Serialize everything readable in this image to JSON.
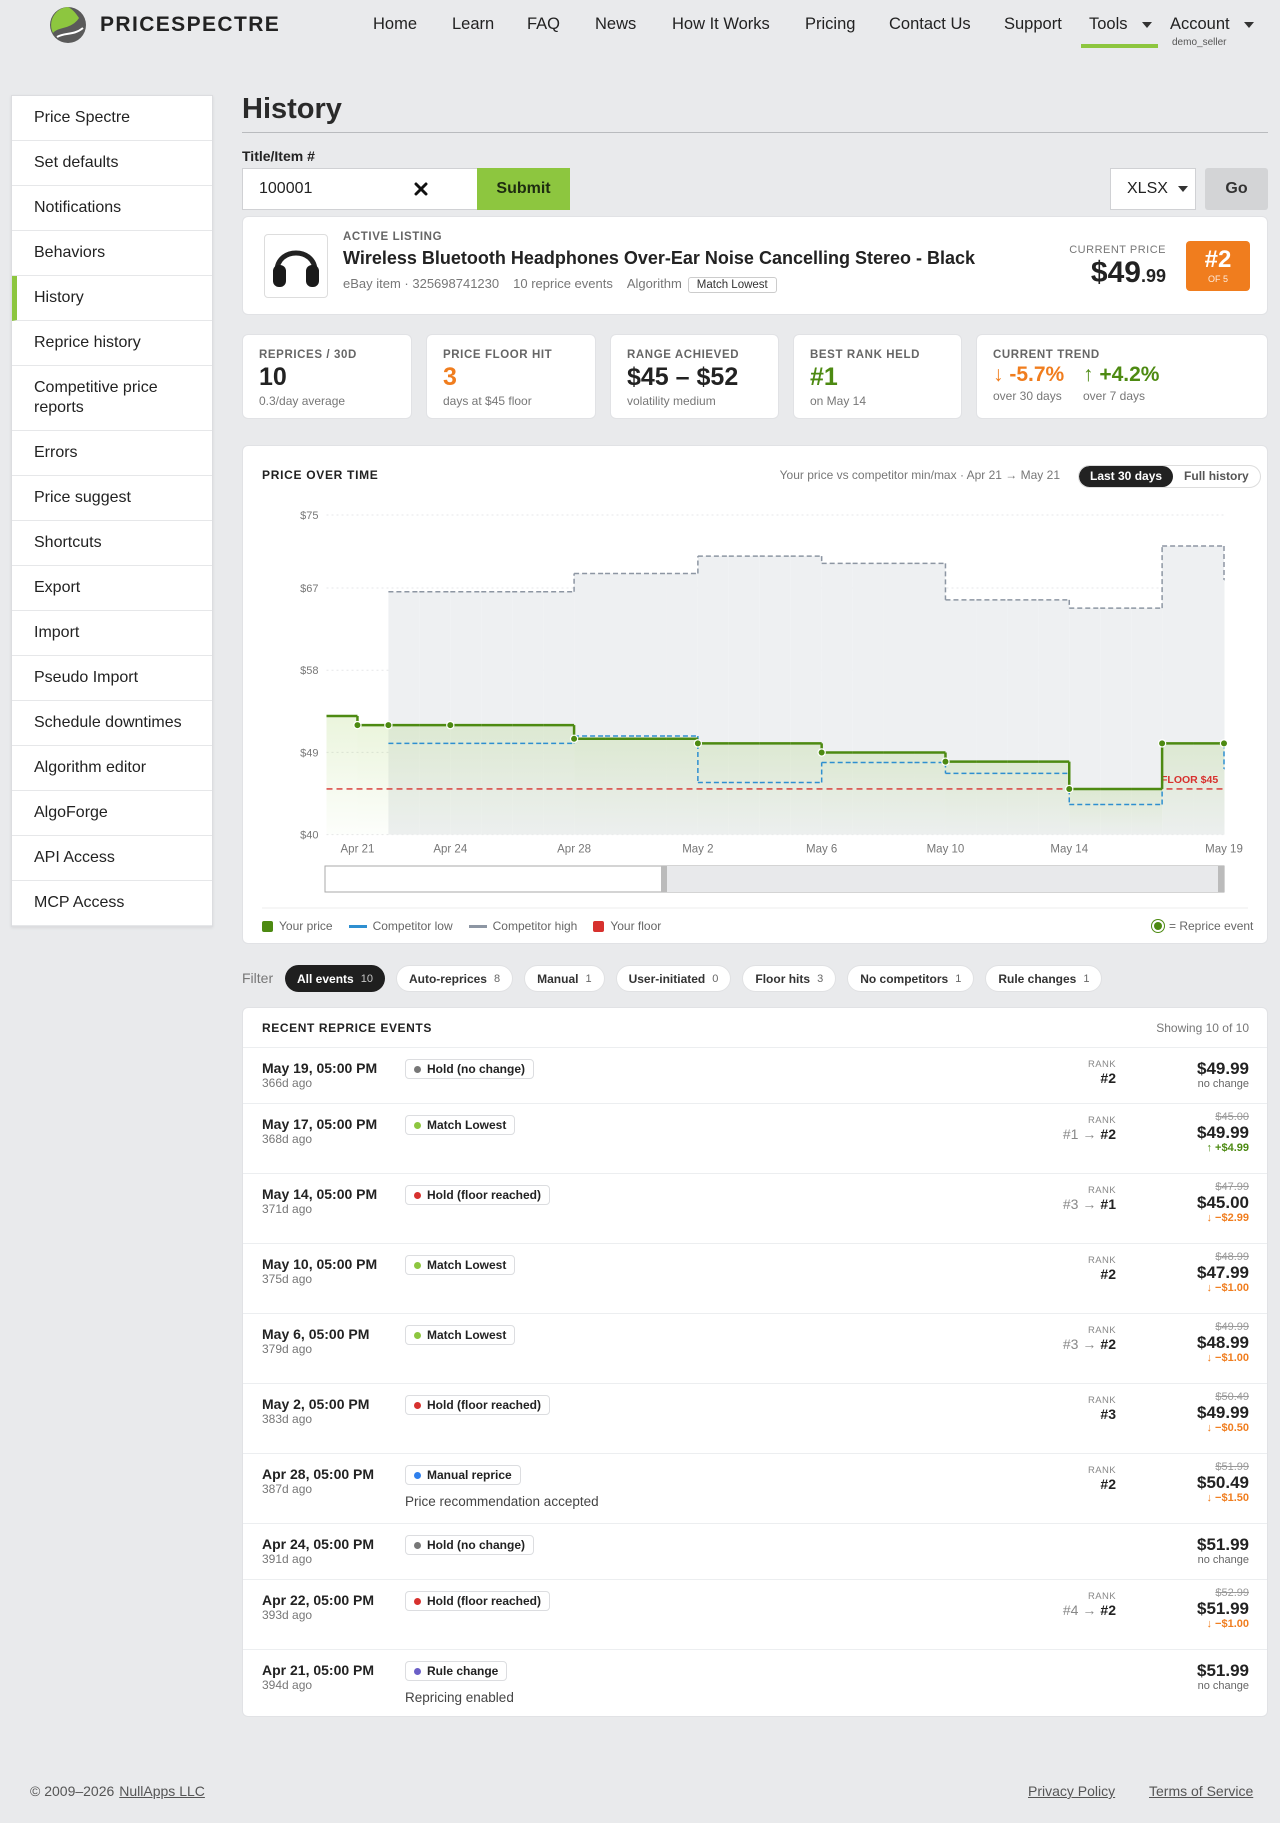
{
  "header": {
    "brand": "PRICESPECTRE",
    "nav": [
      "Home",
      "Learn",
      "FAQ",
      "News",
      "How It Works",
      "Pricing",
      "Contact Us",
      "Support",
      "Tools",
      "Account"
    ],
    "dropdowns": [
      8,
      9
    ],
    "active": 8,
    "account_user": "demo_seller"
  },
  "sidebar": {
    "items": [
      "Price Spectre",
      "Set defaults",
      "Notifications",
      "Behaviors",
      "History",
      "Reprice history",
      "Competitive price reports",
      "Errors",
      "Price suggest",
      "Shortcuts",
      "Export",
      "Import",
      "Pseudo Import",
      "Schedule downtimes",
      "Algorithm editor",
      "AlgoForge",
      "API Access",
      "MCP Access"
    ],
    "active": 4
  },
  "page": {
    "title": "History",
    "search_label": "Title/Item #",
    "search_value": "100001",
    "submit": "Submit",
    "format": "XLSX",
    "go": "Go"
  },
  "listing": {
    "status": "ACTIVE LISTING",
    "title": "Wireless Bluetooth Headphones Over-Ear Noise Cancelling Stereo - Black",
    "item": "eBay item · 325698741230",
    "events": "10 reprice events",
    "algorithm_label": "Algorithm",
    "algorithm": "Match Lowest",
    "price_label": "CURRENT PRICE",
    "price_dollars": "$49",
    "price_cents": ".99",
    "rank": "#2",
    "rank_of": "OF 5"
  },
  "stats": [
    {
      "label": "REPRICES / 30D",
      "value": "10",
      "note": "0.3/day average"
    },
    {
      "label": "PRICE FLOOR HIT",
      "value": "3",
      "note": "days at $45 floor",
      "color": "#f07d1e"
    },
    {
      "label": "RANGE ACHIEVED",
      "value": "$45 – $52",
      "note": "volatility medium"
    },
    {
      "label": "BEST RANK HELD",
      "value": "#1",
      "note": "on May 14",
      "color": "#4d8a12"
    }
  ],
  "trend": {
    "label": "CURRENT TREND",
    "items": [
      {
        "value": "↓ -5.7%",
        "note": "over 30 days",
        "color": "#f07d1e"
      },
      {
        "value": "↑ +4.2%",
        "note": "over 7 days",
        "color": "#4d8a12"
      }
    ]
  },
  "chart": {
    "type": "step",
    "title": "PRICE OVER TIME",
    "subtitle": "Your price vs competitor min/max · Apr 21 → May 21",
    "ranges": [
      "Last 30 days",
      "Full history"
    ],
    "active_range": 0,
    "categories": [
      null,
      "Apr 21",
      null,
      null,
      "Apr 24",
      null,
      null,
      null,
      "Apr 28",
      null,
      null,
      null,
      "May 2",
      null,
      null,
      null,
      "May 6",
      null,
      null,
      null,
      "May 10",
      null,
      null,
      null,
      "May 14",
      null,
      null,
      null,
      null,
      "May 19"
    ],
    "ylim": [
      40,
      75
    ],
    "yticks": [
      {
        "value": 75,
        "label": "$75"
      },
      {
        "value": 67,
        "label": "$67"
      },
      {
        "value": 58,
        "label": "$58"
      },
      {
        "value": 49,
        "label": "$49"
      },
      {
        "value": 40,
        "label": "$40"
      }
    ],
    "grid": true,
    "series": [
      {
        "name": "Your price",
        "color": "#4d8a12",
        "values": [
          52.99,
          51.99,
          51.99,
          51.99,
          51.99,
          51.99,
          51.99,
          51.99,
          50.49,
          50.49,
          50.49,
          50.49,
          49.99,
          49.99,
          49.99,
          49.99,
          48.99,
          48.99,
          48.99,
          48.99,
          47.99,
          47.99,
          47.99,
          47.99,
          45,
          45,
          45,
          49.99,
          49.99,
          49.99
        ]
      },
      {
        "name": "Competitor low",
        "color": "#2e8fd0",
        "values": [
          null,
          null,
          49.99,
          49.99,
          49.99,
          49.99,
          49.99,
          49.99,
          50.8,
          50.8,
          50.8,
          50.8,
          45.7,
          45.7,
          45.7,
          45.7,
          47.9,
          47.9,
          47.9,
          47.9,
          46.7,
          46.7,
          46.7,
          46.7,
          43.3,
          43.3,
          43.3,
          49.99,
          49.99,
          47.2
        ]
      },
      {
        "name": "Competitor high",
        "color": "#8d96a3",
        "values": [
          null,
          null,
          66.6,
          66.6,
          66.6,
          66.6,
          66.6,
          66.6,
          68.6,
          68.6,
          68.6,
          68.6,
          70.5,
          70.5,
          70.5,
          70.5,
          69.7,
          69.7,
          69.7,
          69.7,
          65.7,
          65.7,
          65.7,
          65.7,
          64.8,
          64.8,
          64.8,
          71.6,
          71.6,
          67.9
        ]
      },
      {
        "name": "= Reprice event",
        "color": "#4d8a12",
        "values": [
          null,
          51.99,
          51.99,
          null,
          51.99,
          null,
          null,
          null,
          50.49,
          null,
          null,
          null,
          49.99,
          null,
          null,
          null,
          48.99,
          null,
          null,
          null,
          47.99,
          null,
          null,
          null,
          45,
          null,
          null,
          49.99,
          null,
          49.99
        ]
      }
    ],
    "floor": {
      "name": "Your floor",
      "color": "#d7312e",
      "value": 45,
      "label": "FLOOR $45"
    }
  },
  "filters": {
    "label": "Filter",
    "active": 0,
    "items": [
      {
        "label": "All events",
        "count": 10
      },
      {
        "label": "Auto-reprices",
        "count": 8
      },
      {
        "label": "Manual",
        "count": 1
      },
      {
        "label": "User-initiated",
        "count": 0
      },
      {
        "label": "Floor hits",
        "count": 3
      },
      {
        "label": "No competitors",
        "count": 1
      },
      {
        "label": "Rule changes",
        "count": 1
      }
    ]
  },
  "events": {
    "title": "RECENT REPRICE EVENTS",
    "showing": "Showing 10 of 10",
    "rank_label": "RANK",
    "rank_arrow": "→",
    "rows": [
      {
        "date": "May 19, 05:00 PM",
        "ago": "366d ago",
        "action": "Hold (no change)",
        "color": "#777777",
        "rank_to": "#2",
        "price": "$49.99",
        "change": "no change"
      },
      {
        "date": "May 17, 05:00 PM",
        "ago": "368d ago",
        "action": "Match Lowest",
        "color": "#8dc63f",
        "rank_from": "#1",
        "rank_to": "#2",
        "old_price": "$45.00",
        "price": "$49.99",
        "change": "↑ +$4.99"
      },
      {
        "date": "May 14, 05:00 PM",
        "ago": "371d ago",
        "action": "Hold (floor reached)",
        "color": "#d7312e",
        "rank_from": "#3",
        "rank_to": "#1",
        "old_price": "$47.99",
        "price": "$45.00",
        "change": "↓ −$2.99"
      },
      {
        "date": "May 10, 05:00 PM",
        "ago": "375d ago",
        "action": "Match Lowest",
        "color": "#8dc63f",
        "rank_to": "#2",
        "old_price": "$48.99",
        "price": "$47.99",
        "change": "↓ −$1.00"
      },
      {
        "date": "May 6, 05:00 PM",
        "ago": "379d ago",
        "action": "Match Lowest",
        "color": "#8dc63f",
        "rank_from": "#3",
        "rank_to": "#2",
        "old_price": "$49.99",
        "price": "$48.99",
        "change": "↓ −$1.00"
      },
      {
        "date": "May 2, 05:00 PM",
        "ago": "383d ago",
        "action": "Hold (floor reached)",
        "color": "#d7312e",
        "rank_to": "#3",
        "old_price": "$50.49",
        "price": "$49.99",
        "change": "↓ −$0.50"
      },
      {
        "date": "Apr 28, 05:00 PM",
        "ago": "387d ago",
        "action": "Manual reprice",
        "color": "#2f80ed",
        "note": "Price recommendation accepted",
        "rank_to": "#2",
        "old_price": "$51.99",
        "price": "$50.49",
        "change": "↓ −$1.50"
      },
      {
        "date": "Apr 24, 05:00 PM",
        "ago": "391d ago",
        "action": "Hold (no change)",
        "color": "#777777",
        "price": "$51.99",
        "change": "no change"
      },
      {
        "date": "Apr 22, 05:00 PM",
        "ago": "393d ago",
        "action": "Hold (floor reached)",
        "color": "#d7312e",
        "rank_from": "#4",
        "rank_to": "#2",
        "old_price": "$52.99",
        "price": "$51.99",
        "change": "↓ −$1.00"
      },
      {
        "date": "Apr 21, 05:00 PM",
        "ago": "394d ago",
        "action": "Rule change",
        "color": "#6b5fc7",
        "note": "Repricing enabled",
        "price": "$51.99",
        "change": "no change"
      }
    ]
  },
  "footer": {
    "copyright": "© 2009–2026",
    "company": "NullApps LLC",
    "links": [
      "Privacy Policy",
      "Terms of Service"
    ]
  }
}
